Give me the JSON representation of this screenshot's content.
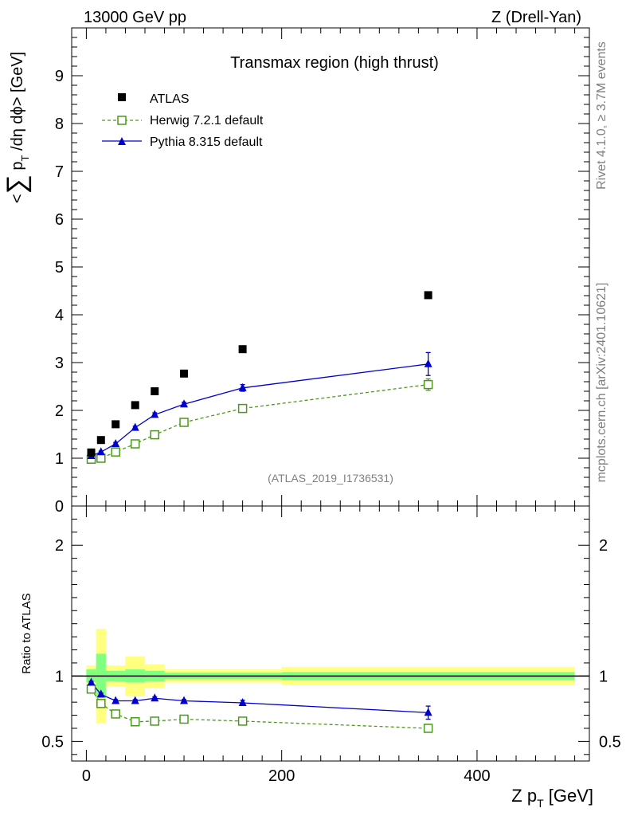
{
  "header": {
    "left": "13000 GeV pp",
    "right": "Z (Drell-Yan)"
  },
  "side_labels": {
    "rivet": "Rivet 4.1.0, ≥ 3.7M events",
    "mcplots": "mcplots.cern.ch [arXiv:2401.10621]"
  },
  "chart_data": {
    "type": "scatter",
    "title": "Transmax region (high thrust)",
    "analysis_tag": "(ATLAS_2019_I1736531)",
    "xlabel": "Z p_T [GeV]",
    "xlabel_main": "Z p",
    "xlabel_sub": "T",
    "xlabel_unit": " [GeV]",
    "ylabel_parts": {
      "pre": "<",
      "sum": "∑",
      "p": " p",
      "sub": "T",
      "post": " /dη dϕ> [GeV]"
    },
    "ratio_ylabel": "Ratio to ATLAS",
    "xlim": [
      -15,
      515
    ],
    "ylim": [
      0,
      10
    ],
    "ratio_ylim": [
      0.35,
      2.3
    ],
    "x_ticks": [
      0,
      200,
      400
    ],
    "x_tick_labels": [
      "0",
      "200",
      "400"
    ],
    "y_ticks": [
      0,
      1,
      2,
      3,
      4,
      5,
      6,
      7,
      8,
      9
    ],
    "y_tick_labels": [
      "0",
      "1",
      "2",
      "3",
      "4",
      "5",
      "6",
      "7",
      "8",
      "9"
    ],
    "ratio_ticks": [
      0.5,
      1,
      2
    ],
    "ratio_tick_labels": [
      "0.5",
      "1",
      "2"
    ],
    "legend": [
      "ATLAS",
      "Herwig 7.2.1 default",
      "Pythia 8.315 default"
    ],
    "bins": [
      [
        0,
        10
      ],
      [
        10,
        20
      ],
      [
        20,
        40
      ],
      [
        40,
        60
      ],
      [
        60,
        80
      ],
      [
        80,
        120
      ],
      [
        120,
        200
      ],
      [
        200,
        500
      ]
    ],
    "x": [
      5,
      15,
      30,
      50,
      70,
      100,
      160,
      350
    ],
    "series": [
      {
        "name": "ATLAS",
        "color": "#000000",
        "values": [
          1.12,
          1.38,
          1.71,
          2.11,
          2.4,
          2.77,
          3.28,
          4.41
        ]
      },
      {
        "name": "Herwig 7.2.1 default",
        "color": "#4a9a1a",
        "values": [
          0.98,
          1.0,
          1.13,
          1.3,
          1.49,
          1.75,
          2.04,
          2.54
        ],
        "errors": [
          0.02,
          0.02,
          0.02,
          0.03,
          0.03,
          0.04,
          0.04,
          0.12
        ],
        "ratio": [
          0.9,
          0.79,
          0.71,
          0.65,
          0.655,
          0.67,
          0.655,
          0.6
        ],
        "ratio_errors": [
          0.01,
          0.02,
          0.01,
          0.01,
          0.01,
          0.01,
          0.01,
          0.03
        ]
      },
      {
        "name": "Pythia 8.315 default",
        "color": "#0000cc",
        "values": [
          1.05,
          1.13,
          1.3,
          1.64,
          1.91,
          2.13,
          2.47,
          2.97
        ],
        "errors": [
          0.02,
          0.02,
          0.03,
          0.03,
          0.04,
          0.04,
          0.07,
          0.24
        ],
        "ratio": [
          0.95,
          0.86,
          0.81,
          0.81,
          0.83,
          0.81,
          0.795,
          0.72
        ],
        "ratio_errors": [
          0.01,
          0.01,
          0.01,
          0.01,
          0.01,
          0.01,
          0.02,
          0.05
        ]
      }
    ],
    "ratio_bands": {
      "inner_color": "#80ff80",
      "outer_color": "#ffff80",
      "inner": [
        0.05,
        0.17,
        0.04,
        0.05,
        0.04,
        0.025,
        0.025,
        0.03
      ],
      "outer": [
        0.08,
        0.36,
        0.08,
        0.15,
        0.09,
        0.05,
        0.05,
        0.07
      ]
    }
  }
}
